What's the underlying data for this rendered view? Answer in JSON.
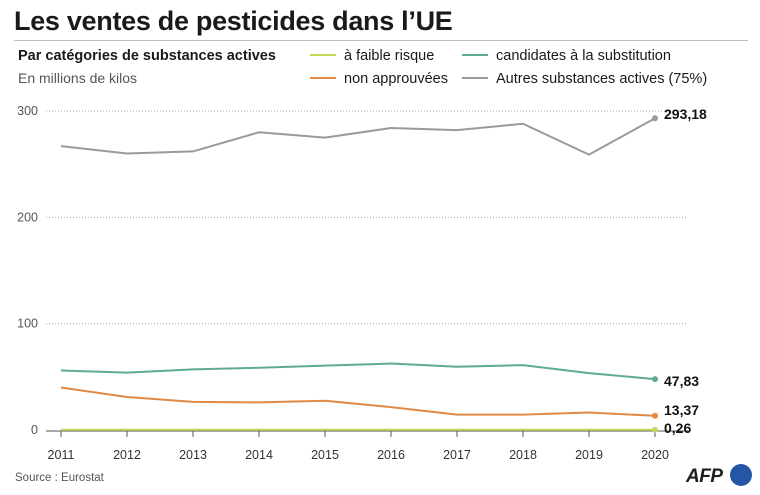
{
  "title": "Les ventes de pesticides dans l’UE",
  "subtitle": "Par catégories de substances actives",
  "unit": "En millions de kilos",
  "source": "Source : Eurostat",
  "logo": "AFP",
  "colors": {
    "faible": "#c5d65a",
    "substitution": "#5fab98",
    "non": "#e08a45",
    "autres": "#9a9a9a"
  },
  "legend": [
    {
      "label": "à faible risque",
      "color": "#c5d65a"
    },
    {
      "label": "candidates à la substitution",
      "color": "#5fab98"
    },
    {
      "label": "non approuvées",
      "color": "#e08a45"
    },
    {
      "label": "Autres substances actives (75%)",
      "color": "#9a9a9a"
    }
  ],
  "chart_data": {
    "type": "line",
    "x": [
      2011,
      2012,
      2013,
      2014,
      2015,
      2016,
      2017,
      2018,
      2019,
      2020
    ],
    "ylim": [
      0,
      300
    ],
    "yticks": [
      0,
      100,
      200,
      300
    ],
    "grid": true,
    "legend_position": "top-right",
    "series": [
      {
        "key": "autres",
        "name": "Autres substances actives (75%)",
        "color": "#9a9a9a",
        "values": [
          267,
          260,
          262,
          280,
          275,
          284,
          282,
          288,
          259,
          293.18
        ],
        "end_label": "293,18"
      },
      {
        "key": "substitution",
        "name": "candidates à la substitution",
        "color": "#5fab98",
        "values": [
          56,
          54,
          57,
          58.5,
          60.5,
          62.5,
          59.5,
          61,
          53.5,
          47.83
        ],
        "end_label": "47,83"
      },
      {
        "key": "non",
        "name": "non approuvées",
        "color": "#e08a45",
        "values": [
          40,
          31,
          26.5,
          26,
          27.5,
          21.5,
          14.5,
          14.5,
          16.5,
          13.37
        ],
        "end_label": "13,37"
      },
      {
        "key": "faible",
        "name": "à faible risque",
        "color": "#c5d65a",
        "values": [
          0.2,
          0.2,
          0.2,
          0.2,
          0.2,
          0.2,
          0.2,
          0.2,
          0.2,
          0.26
        ],
        "end_label": "0,26"
      }
    ]
  }
}
